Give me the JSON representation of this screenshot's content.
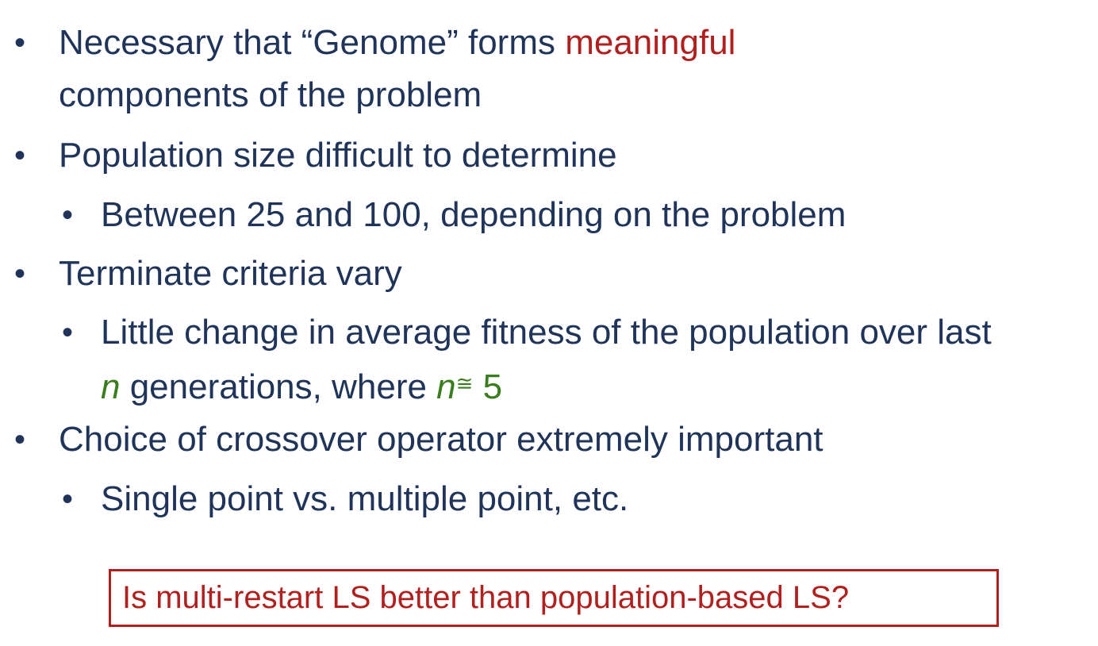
{
  "bullets": {
    "b1": {
      "line1_prefix": "Necessary that “Genome” forms ",
      "line1_highlight": "meaningful",
      "line2": "components of the problem"
    },
    "b2": {
      "text": "Population size difficult to determine",
      "sub1": "Between 25 and 100, depending on the problem"
    },
    "b3": {
      "text": "Terminate criteria vary",
      "sub1_line1": "Little change in average fitness of the population over last",
      "sub1_line2_var": "n",
      "sub1_line2_text": " generations, where ",
      "sub1_line2_var2": "n",
      "sub1_line2_approx": "≅",
      "sub1_line2_value": " 5"
    },
    "b4": {
      "text": "Choice of crossover operator extremely important",
      "sub1": "Single point vs. multiple point, etc."
    }
  },
  "bullet_glyph": "•",
  "callout": {
    "text": "Is multi-restart LS better than population-based LS?"
  },
  "colors": {
    "text": "#1f3458",
    "highlight_red": "#b0201e",
    "highlight_green": "#3a7d1c"
  }
}
